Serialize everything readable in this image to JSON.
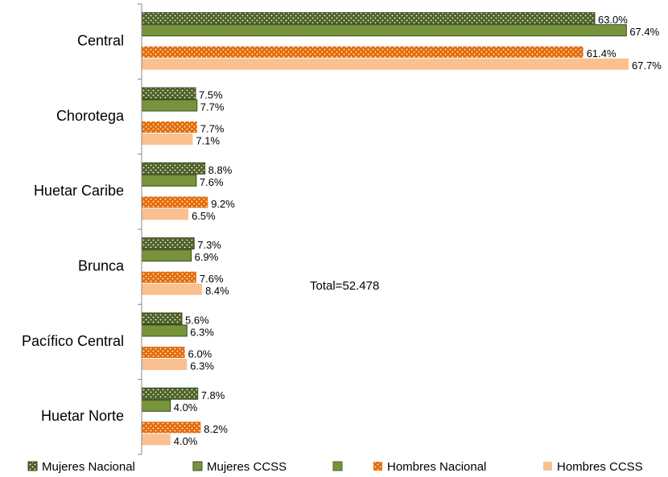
{
  "chart_data": {
    "type": "hbar",
    "categories": [
      "Central",
      "Chorotega",
      "Huetar Caribe",
      "Brunca",
      "Pacífico Central",
      "Huetar Norte"
    ],
    "xlim": [
      0,
      68
    ],
    "annotation": "Total=52.478",
    "series": [
      {
        "name": "Mujeres Nacional",
        "color": "#4f6228",
        "pattern": "dotted",
        "values": [
          63.0,
          7.5,
          8.8,
          7.3,
          5.6,
          7.8
        ],
        "value_labels": [
          "63.0%",
          "7.5%",
          "8.8%",
          "7.3%",
          "5.6%",
          "7.8%"
        ]
      },
      {
        "name": "Mujeres CCSS",
        "color": "#77933c",
        "values": [
          67.4,
          7.7,
          7.6,
          6.9,
          6.3,
          4.0
        ],
        "value_labels": [
          "67.4%",
          "7.7%",
          "7.6%",
          "6.9%",
          "6.3%",
          "4.0%"
        ]
      },
      {
        "name": "Hombres Nacional",
        "color": "#e46c0a",
        "pattern": "dotted",
        "values": [
          61.4,
          7.7,
          9.2,
          7.6,
          6.0,
          8.2
        ],
        "value_labels": [
          "61.4%",
          "7.7%",
          "9.2%",
          "7.6%",
          "6.0%",
          "8.2%"
        ]
      },
      {
        "name": "Hombres CCSS",
        "color": "#fac090",
        "values": [
          67.7,
          7.1,
          6.5,
          8.4,
          6.3,
          4.0
        ],
        "value_labels": [
          "67.7%",
          "7.1%",
          "6.5%",
          "8.4%",
          "6.3%",
          "4.0%"
        ]
      }
    ]
  }
}
